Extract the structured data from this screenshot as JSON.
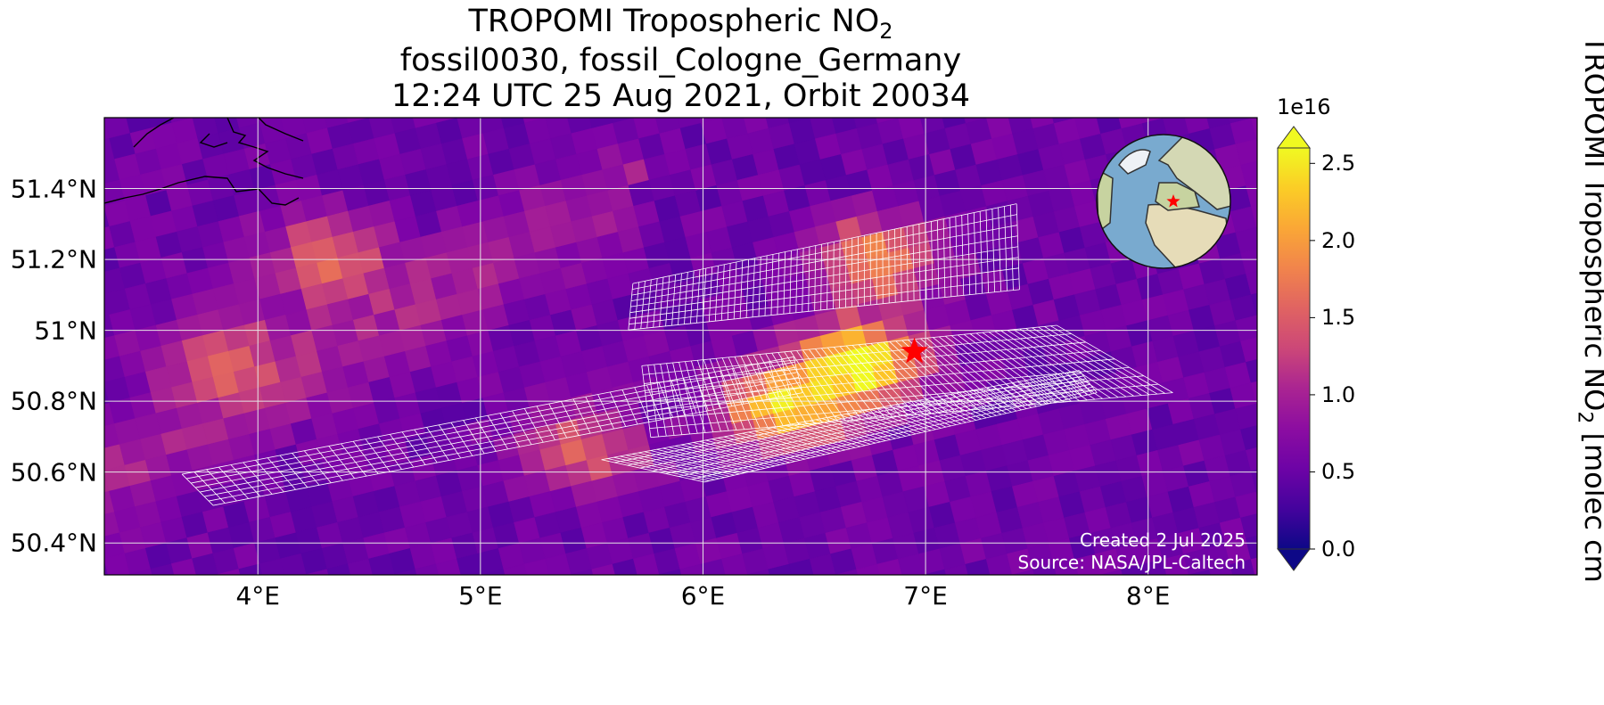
{
  "title": {
    "line1_prefix": "TROPOMI Tropospheric NO",
    "line1_sub": "2",
    "line2": "fossil0030, fossil_Cologne_Germany",
    "line3": "12:24 UTC 25 Aug 2021, Orbit 20034"
  },
  "credits": {
    "created": "Created 2 Jul 2025",
    "source": "Source: NASA/JPL-Caltech"
  },
  "chart_data": {
    "type": "heatmap",
    "projection": "map",
    "lon_range": [
      3.31,
      8.49
    ],
    "lat_range": [
      50.31,
      51.6
    ],
    "x_ticks": [
      {
        "v": 4,
        "label": "4°E"
      },
      {
        "v": 5,
        "label": "5°E"
      },
      {
        "v": 6,
        "label": "6°E"
      },
      {
        "v": 7,
        "label": "7°E"
      },
      {
        "v": 8,
        "label": "8°E"
      }
    ],
    "y_ticks": [
      {
        "v": 51.4,
        "label": "51.4°N"
      },
      {
        "v": 51.2,
        "label": "51.2°N"
      },
      {
        "v": 51.0,
        "label": "51°N"
      },
      {
        "v": 50.8,
        "label": "50.8°N"
      },
      {
        "v": 50.6,
        "label": "50.6°N"
      },
      {
        "v": 50.4,
        "label": "50.4°N"
      }
    ],
    "grid": true,
    "colormap": "plasma",
    "colorbar": {
      "range": [
        0,
        2.6
      ],
      "extend": "both",
      "exponent_label": "1e16",
      "ticks": [
        {
          "v": 0.0,
          "label": "0.0"
        },
        {
          "v": 0.5,
          "label": "0.5"
        },
        {
          "v": 1.0,
          "label": "1.0"
        },
        {
          "v": 1.5,
          "label": "1.5"
        },
        {
          "v": 2.0,
          "label": "2.0"
        },
        {
          "v": 2.5,
          "label": "2.5"
        }
      ],
      "label_prefix": "TROPOMI Tropospheric NO",
      "label_sub": "2",
      "label_suffix": " [molec cm"
    },
    "target": {
      "lon": 6.95,
      "lat": 50.94,
      "marker": "red-star",
      "color": "#ff0000"
    },
    "plumes": [
      {
        "lon": 6.65,
        "lat": 50.93,
        "peak": 2.5
      },
      {
        "lon": 6.3,
        "lat": 50.8,
        "peak": 2.1
      },
      {
        "lon": 6.72,
        "lat": 51.22,
        "peak": 1.7
      },
      {
        "lon": 5.4,
        "lat": 50.68,
        "peak": 1.2
      },
      {
        "lon": 4.25,
        "lat": 51.22,
        "peak": 1.3
      },
      {
        "lon": 3.75,
        "lat": 50.95,
        "peak": 1.1
      }
    ],
    "target_swaths": [
      [
        [
          3.659,
          50.594
        ],
        [
          3.799,
          50.506
        ],
        [
          6.447,
          50.824
        ],
        [
          6.407,
          50.925
        ]
      ],
      [
        [
          5.685,
          51.132
        ],
        [
          7.409,
          51.357
        ],
        [
          7.422,
          51.115
        ],
        [
          5.665,
          51.001
        ]
      ],
      [
        [
          5.725,
          50.9
        ],
        [
          7.59,
          51.014
        ],
        [
          8.111,
          50.824
        ],
        [
          5.765,
          50.698
        ]
      ],
      [
        [
          5.544,
          50.635
        ],
        [
          7.69,
          50.887
        ],
        [
          7.77,
          50.824
        ],
        [
          6.006,
          50.572
        ]
      ]
    ],
    "inset": {
      "type": "globe",
      "marker": "red-star"
    }
  }
}
